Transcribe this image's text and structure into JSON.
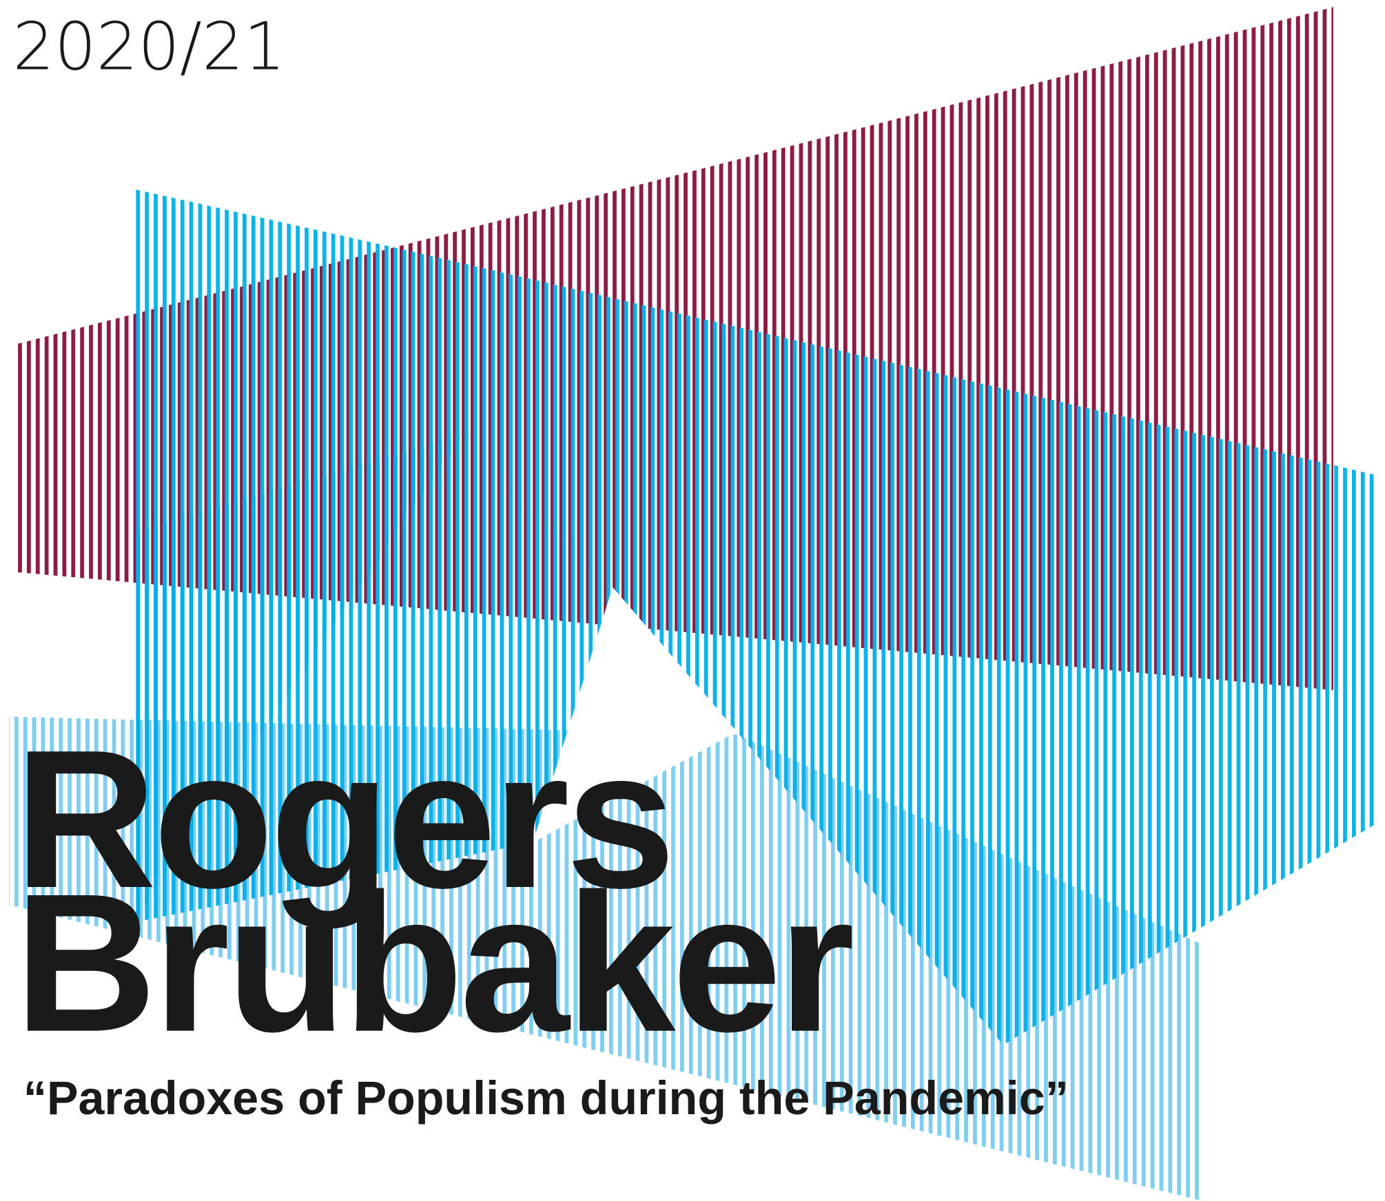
{
  "year": "2020/21",
  "speaker": {
    "first_name": "Rogers",
    "last_name": "Brubaker"
  },
  "lecture_title": "“Paradoxes of Populism during the Pandemic”"
}
